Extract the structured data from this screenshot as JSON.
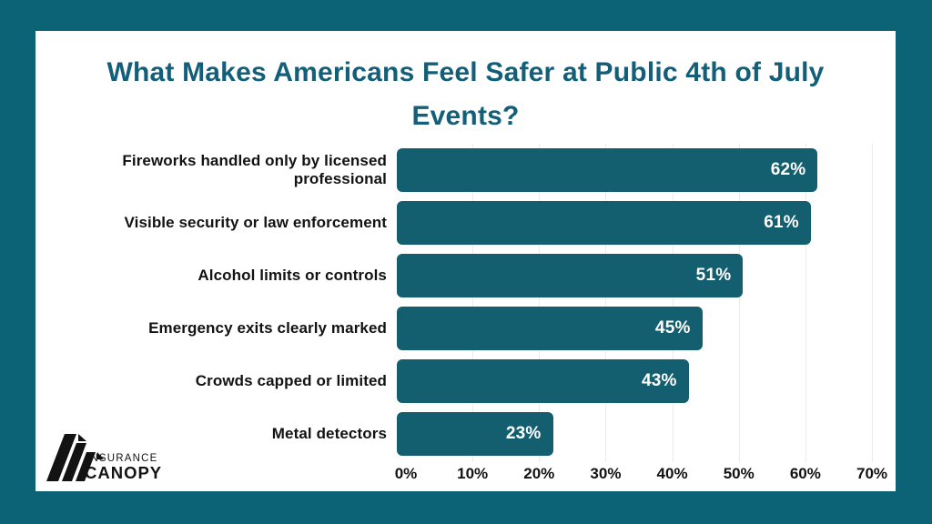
{
  "frame": {
    "color": "#0b6375"
  },
  "title": {
    "text": "What Makes Americans Feel Safer at Public 4th of July Events?",
    "color": "#135e78"
  },
  "logo": {
    "line1": "INSURANCE",
    "line2": "CANOPY"
  },
  "chart_data": {
    "type": "bar",
    "orientation": "horizontal",
    "title": "What Makes Americans Feel Safer at Public 4th of July Events?",
    "categories": [
      "Fireworks handled only by licensed professional",
      "Visible security or law enforcement",
      "Alcohol limits or controls",
      "Emergency exits clearly marked",
      "Crowds capped or limited",
      "Metal detectors"
    ],
    "values": [
      62,
      61,
      51,
      45,
      43,
      23
    ],
    "value_labels": [
      "62%",
      "61%",
      "51%",
      "45%",
      "43%",
      "23%"
    ],
    "x_ticks": [
      "0%",
      "10%",
      "20%",
      "30%",
      "40%",
      "50%",
      "60%",
      "70%"
    ],
    "xlim": [
      0,
      70
    ],
    "xlabel": "",
    "ylabel": "",
    "grid": true,
    "legend": false,
    "bar_color": "#145f6f",
    "value_label_color": "#ffffff",
    "gridline_color": "#ececec"
  }
}
